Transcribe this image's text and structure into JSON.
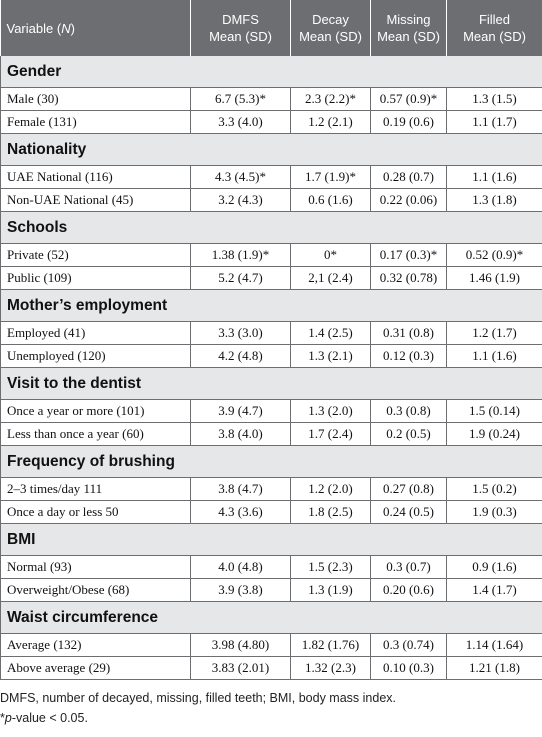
{
  "table": {
    "header": {
      "variable": {
        "before": "Variable (",
        "italic": "N",
        "after": ")"
      },
      "columns": [
        [
          "DMFS",
          "Mean (SD)"
        ],
        [
          "Decay",
          "Mean (SD)"
        ],
        [
          "Missing",
          "Mean (SD)"
        ],
        [
          "Filled",
          "Mean (SD)"
        ]
      ]
    },
    "sections": [
      {
        "title": "Gender",
        "rows": [
          [
            "Male (30)",
            "6.7 (5.3)*",
            "2.3 (2.2)*",
            "0.57 (0.9)*",
            "1.3 (1.5)"
          ],
          [
            "Female (131)",
            "3.3 (4.0)",
            "1.2 (2.1)",
            "0.19 (0.6)",
            "1.1 (1.7)"
          ]
        ]
      },
      {
        "title": "Nationality",
        "rows": [
          [
            "UAE National (116)",
            "4.3 (4.5)*",
            "1.7 (1.9)*",
            "0.28 (0.7)",
            "1.1 (1.6)"
          ],
          [
            "Non-UAE National (45)",
            "3.2 (4.3)",
            "0.6 (1.6)",
            "0.22 (0.06)",
            "1.3 (1.8)"
          ]
        ]
      },
      {
        "title": "Schools",
        "rows": [
          [
            "Private (52)",
            "1.38 (1.9)*",
            "0*",
            "0.17 (0.3)*",
            "0.52 (0.9)*"
          ],
          [
            "Public (109)",
            "5.2 (4.7)",
            "2,1 (2.4)",
            "0.32 (0.78)",
            "1.46 (1.9)"
          ]
        ]
      },
      {
        "title": "Mother’s employment",
        "rows": [
          [
            "Employed (41)",
            "3.3 (3.0)",
            "1.4 (2.5)",
            "0.31 (0.8)",
            "1.2 (1.7)"
          ],
          [
            "Unemployed (120)",
            "4.2 (4.8)",
            "1.3 (2.1)",
            "0.12 (0.3)",
            "1.1 (1.6)"
          ]
        ]
      },
      {
        "title": "Visit to the dentist",
        "rows": [
          [
            "Once a year or more (101)",
            "3.9 (4.7)",
            "1.3 (2.0)",
            "0.3 (0.8)",
            "1.5 (0.14)"
          ],
          [
            "Less than once a year (60)",
            "3.8 (4.0)",
            "1.7 (2.4)",
            "0.2 (0.5)",
            "1.9 (0.24)"
          ]
        ]
      },
      {
        "title": "Frequency of brushing",
        "rows": [
          [
            "2–3 times/day 111",
            "3.8 (4.7)",
            "1.2 (2.0)",
            "0.27 (0.8)",
            "1.5 (0.2)"
          ],
          [
            "Once a day or less 50",
            "4.3 (3.6)",
            "1.8 (2.5)",
            "0.24 (0.5)",
            "1.9 (0.3)"
          ]
        ]
      },
      {
        "title": "BMI",
        "rows": [
          [
            "Normal (93)",
            "4.0 (4.8)",
            "1.5 (2.3)",
            "0.3 (0.7)",
            "0.9 (1.6)"
          ],
          [
            "Overweight/Obese (68)",
            "3.9 (3.8)",
            "1.3 (1.9)",
            "0.20 (0.6)",
            "1.4 (1.7)"
          ]
        ]
      },
      {
        "title": "Waist circumference",
        "rows": [
          [
            "Average (132)",
            "3.98 (4.80)",
            "1.82 (1.76)",
            "0.3 (0.74)",
            "1.14 (1.64)"
          ],
          [
            "Above average (29)",
            "3.83 (2.01)",
            "1.32 (2.3)",
            "0.10 (0.3)",
            "1.21 (1.8)"
          ]
        ]
      }
    ]
  },
  "footnotes": {
    "abbreviations": "DMFS, number of decayed, missing, filled teeth; BMI, body mass index.",
    "significance": {
      "before": "*",
      "italic": "p",
      "after": "-value < 0.05."
    }
  }
}
